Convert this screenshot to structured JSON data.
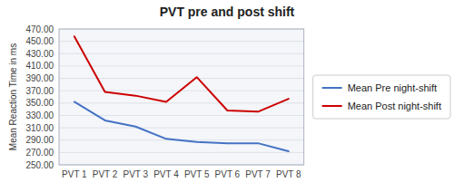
{
  "chart_data": {
    "type": "line",
    "title": "PVT pre and post shift",
    "y_label": "Mean Reaction Time in ms",
    "categories": [
      "PVT 1",
      "PVT 2",
      "PVT 3",
      "PVT 4",
      "PVT 5",
      "PVT 6",
      "PVT 7",
      "PVT 8"
    ],
    "series": [
      {
        "name": "Mean Pre night-shift",
        "color": "#4472C4",
        "values": [
          352,
          322,
          312,
          292,
          287,
          285,
          285,
          272
        ]
      },
      {
        "name": "Mean Post night-shift",
        "color": "#CC0000",
        "values": [
          458,
          368,
          362,
          352,
          392,
          338,
          336,
          357
        ]
      }
    ],
    "ylim": [
      250,
      470
    ],
    "yticks": [
      {
        "value": 250,
        "label": "250.00"
      },
      {
        "value": 270,
        "label": "270.00"
      },
      {
        "value": 290,
        "label": "290.00"
      },
      {
        "value": 310,
        "label": "310.00"
      },
      {
        "value": 330,
        "label": "330.00"
      },
      {
        "value": 350,
        "label": "350.00"
      },
      {
        "value": 370,
        "label": "370.00"
      },
      {
        "value": 390,
        "label": "390.00"
      },
      {
        "value": 410,
        "label": "410.00"
      },
      {
        "value": 430,
        "label": "430.00"
      },
      {
        "value": 450,
        "label": "450.00"
      },
      {
        "value": 470,
        "label": "470.00"
      }
    ],
    "grid": true,
    "legend": "right"
  }
}
